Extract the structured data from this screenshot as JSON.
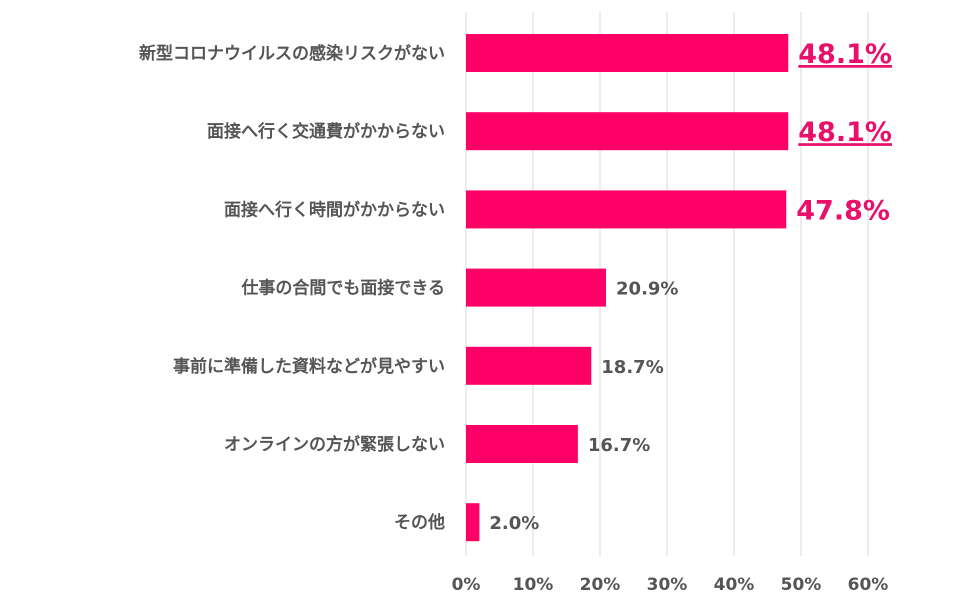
{
  "chart_data": {
    "type": "bar",
    "orientation": "horizontal",
    "categories": [
      "新型コロナウイルスの感染リスクがない",
      "面接へ行く交通費がかからない",
      "面接へ行く時間がかからない",
      "仕事の合間でも面接できる",
      "事前に準備した資料などが見やすい",
      "オンラインの方が緊張しない",
      "その他"
    ],
    "values": [
      48.1,
      48.1,
      47.8,
      20.9,
      18.7,
      16.7,
      2.0
    ],
    "value_labels": [
      "48.1%",
      "48.1%",
      "47.8%",
      "20.9%",
      "18.7%",
      "16.7%",
      "2.0%"
    ],
    "highlight": [
      true,
      true,
      true,
      false,
      false,
      false,
      false
    ],
    "underline": [
      true,
      true,
      false,
      false,
      false,
      false,
      false
    ],
    "xlim": [
      0,
      60
    ],
    "x_ticks": [
      "0%",
      "10%",
      "20%",
      "30%",
      "40%",
      "50%",
      "60%"
    ],
    "grid": "vertical",
    "bar_color": "#ff0066",
    "highlight_label_color": "#e8106a",
    "label_color": "#555555",
    "grid_color": "#d9d9d9",
    "title": "",
    "xlabel": "",
    "ylabel": ""
  }
}
